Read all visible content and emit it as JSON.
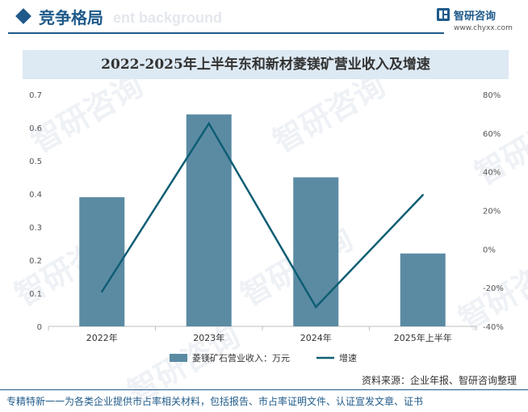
{
  "header": {
    "section_title": "竞争格局",
    "ghost_text": "ent background",
    "brand_name": "智研咨询",
    "brand_url": "www.chyxx.com"
  },
  "watermark": {
    "text": "智研咨询"
  },
  "footer": {
    "source": "资料来源：企业年报、智研咨询整理",
    "tagline": "专精特新一一为各类企业提供市占率相关材料，包括报告、市占率证明文件、认证宣发文章、证书"
  },
  "colors": {
    "bar": "#5b8ba3",
    "line": "#0e5e74",
    "brand": "#1f5a8a",
    "band": "#dde9f3"
  },
  "chart_data": {
    "type": "bar",
    "title": "2022-2025年上半年东和新材菱镁矿营业收入及增速",
    "categories": [
      "2022年",
      "2023年",
      "2024年",
      "2025年上半年"
    ],
    "series": [
      {
        "name": "菱镁矿石营业收入：万元",
        "type": "bar",
        "axis": "left",
        "values": [
          0.39,
          0.64,
          0.45,
          0.22
        ]
      },
      {
        "name": "增速",
        "type": "line",
        "axis": "right",
        "values": [
          -22,
          65,
          -30,
          28
        ]
      }
    ],
    "y_left": {
      "min": 0,
      "max": 0.7,
      "ticks": [
        "0",
        "0.1",
        "0.2",
        "0.3",
        "0.4",
        "0.5",
        "0.6",
        "0.7"
      ]
    },
    "y_right": {
      "min": -40,
      "max": 80,
      "ticks": [
        "-40%",
        "-20%",
        "0%",
        "20%",
        "40%",
        "60%",
        "80%"
      ]
    },
    "grid": false,
    "legend": "bottom-center"
  }
}
